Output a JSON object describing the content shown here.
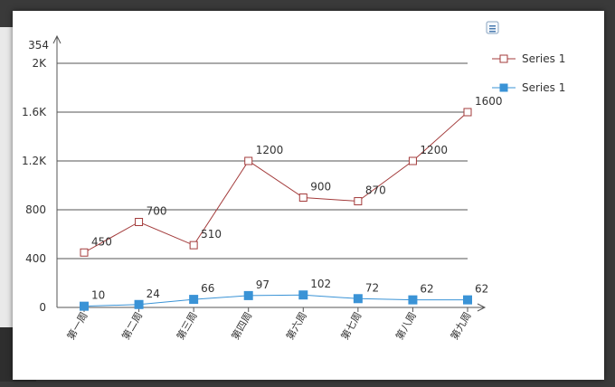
{
  "chart_data": {
    "type": "line",
    "categories": [
      "第一周",
      "第二周",
      "第三周",
      "第四周",
      "第六周",
      "第七周",
      "第八周",
      "第九周"
    ],
    "series": [
      {
        "name": "Series 1",
        "color": "#a33b3b",
        "marker": "hollow-square",
        "values": [
          450,
          700,
          510,
          1200,
          900,
          870,
          1200,
          1600
        ]
      },
      {
        "name": "Series 1",
        "color": "#3a93d6",
        "marker": "filled-square",
        "values": [
          10,
          24,
          66,
          97,
          102,
          72,
          62,
          62
        ]
      }
    ],
    "data_labels": [
      [
        "450",
        "700",
        "510",
        "1200",
        "900",
        "870",
        "1200",
        "1600"
      ],
      [
        "10",
        "24",
        "66",
        "97",
        "102",
        "72",
        "62",
        "62"
      ]
    ],
    "y_ticks": [
      0,
      400,
      800,
      1200,
      1600,
      2000
    ],
    "y_tick_labels": [
      "0",
      "400",
      "800",
      "1.2K",
      "1.6K",
      "2K"
    ],
    "y_axis_top_label": "354",
    "ylim": [
      0,
      2000
    ],
    "grid": true,
    "legend_position": "top-right",
    "title": "",
    "xlabel": "",
    "ylabel": ""
  },
  "toolbar": {
    "menu_icon": "menu-icon"
  }
}
